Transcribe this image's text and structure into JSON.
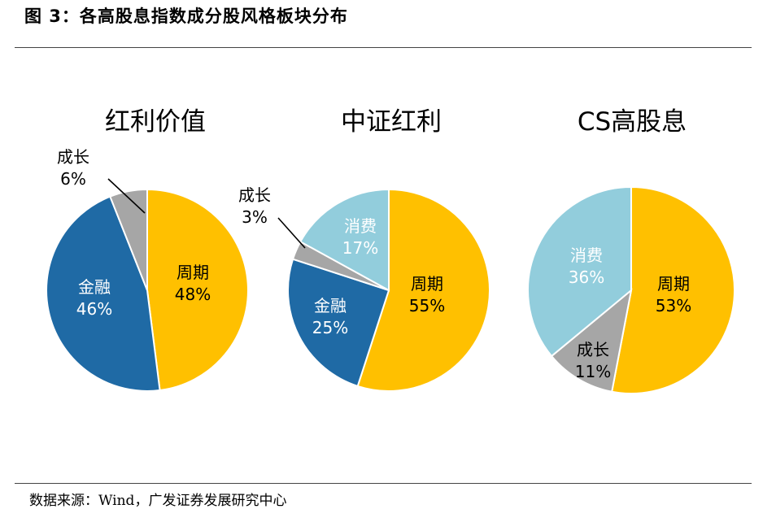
{
  "figure_title": "图  3：各高股息指数成分股风格板块分布",
  "source": "数据来源：Wind，广发证券发展研究中心",
  "colors": {
    "周期": "#FFC000",
    "金融": "#1F6AA5",
    "成长": "#A6A6A6",
    "消费": "#92CDDC"
  },
  "chart_data": [
    {
      "type": "pie",
      "title": "红利价值",
      "slices": [
        {
          "name": "周期",
          "label": "48%",
          "value": 48
        },
        {
          "name": "金融",
          "label": "46%",
          "value": 46
        },
        {
          "name": "成长",
          "label": "6%",
          "value": 6
        }
      ]
    },
    {
      "type": "pie",
      "title": "中证红利",
      "slices": [
        {
          "name": "周期",
          "label": "55%",
          "value": 55
        },
        {
          "name": "金融",
          "label": "25%",
          "value": 25
        },
        {
          "name": "成长",
          "label": "3%",
          "value": 3
        },
        {
          "name": "消费",
          "label": "17%",
          "value": 17
        }
      ]
    },
    {
      "type": "pie",
      "title": "CS高股息",
      "slices": [
        {
          "name": "周期",
          "label": "53%",
          "value": 53
        },
        {
          "name": "成长",
          "label": "11%",
          "value": 11
        },
        {
          "name": "消费",
          "label": "36%",
          "value": 36
        }
      ]
    }
  ]
}
